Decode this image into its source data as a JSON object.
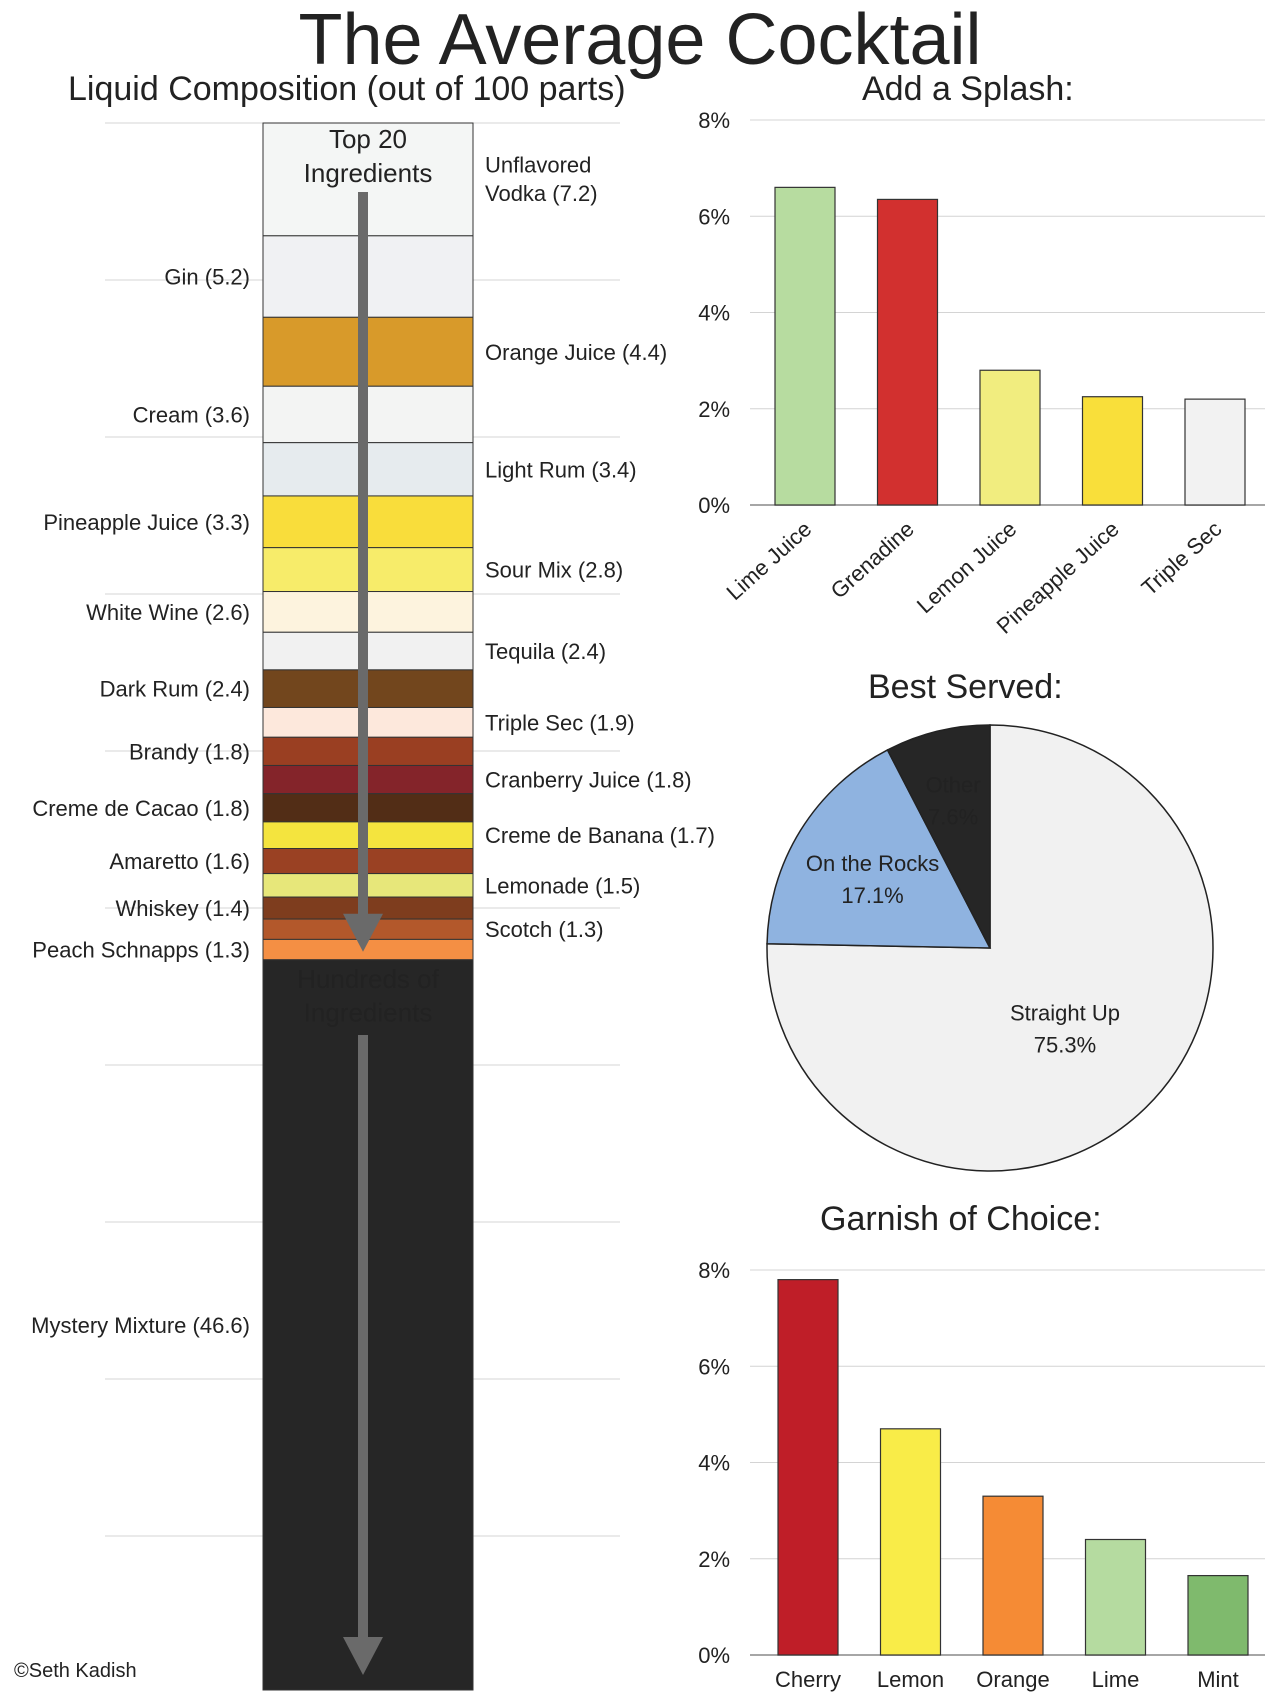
{
  "title": "The Average Cocktail",
  "copyright": "©Seth Kadish",
  "chart_data": [
    {
      "type": "bar",
      "subtype": "stacked-column",
      "title": "Liquid Composition (out of 100 parts)",
      "column_label_top": "Top 20\nIngredients",
      "column_label_bottom": "Hundreds of\nIngredients",
      "segments": [
        {
          "label": "Unflavored\nVodka (7.2)",
          "value": 7.2,
          "color": "#f4f6f5",
          "side": "right"
        },
        {
          "label": "Gin (5.2)",
          "value": 5.2,
          "color": "#f0f1f3",
          "side": "left"
        },
        {
          "label": "Orange Juice (4.4)",
          "value": 4.4,
          "color": "#d89a2a",
          "side": "right"
        },
        {
          "label": "Cream (3.6)",
          "value": 3.6,
          "color": "#f3f4f3",
          "side": "left"
        },
        {
          "label": "Light Rum (3.4)",
          "value": 3.4,
          "color": "#e6ebee",
          "side": "right"
        },
        {
          "label": "Pineapple Juice (3.3)",
          "value": 3.3,
          "color": "#f9dd3b",
          "side": "left"
        },
        {
          "label": "Sour Mix (2.8)",
          "value": 2.8,
          "color": "#f7ec6a",
          "side": "right"
        },
        {
          "label": "White Wine (2.6)",
          "value": 2.6,
          "color": "#fdf3de",
          "side": "left"
        },
        {
          "label": "Tequila (2.4)",
          "value": 2.4,
          "color": "#f1f1f1",
          "side": "right"
        },
        {
          "label": "Dark Rum (2.4)",
          "value": 2.4,
          "color": "#72461d",
          "side": "left"
        },
        {
          "label": "Triple Sec (1.9)",
          "value": 1.9,
          "color": "#fde8dc",
          "side": "right"
        },
        {
          "label": "Brandy (1.8)",
          "value": 1.8,
          "color": "#9a3f22",
          "side": "left"
        },
        {
          "label": "Cranberry Juice (1.8)",
          "value": 1.8,
          "color": "#84242a",
          "side": "right"
        },
        {
          "label": "Creme de Cacao (1.8)",
          "value": 1.8,
          "color": "#522d16",
          "side": "left"
        },
        {
          "label": "Creme de Banana (1.7)",
          "value": 1.7,
          "color": "#f4e43e",
          "side": "right"
        },
        {
          "label": "Amaretto (1.6)",
          "value": 1.6,
          "color": "#9a4123",
          "side": "left"
        },
        {
          "label": "Lemonade (1.5)",
          "value": 1.5,
          "color": "#e7e77a",
          "side": "right"
        },
        {
          "label": "Whiskey (1.4)",
          "value": 1.4,
          "color": "#7e3d1e",
          "side": "left"
        },
        {
          "label": "Scotch (1.3)",
          "value": 1.3,
          "color": "#b3582b",
          "side": "right"
        },
        {
          "label": "Peach Schnapps (1.3)",
          "value": 1.3,
          "color": "#f48f44",
          "side": "left"
        },
        {
          "label": "Mystery Mixture (46.6)",
          "value": 46.6,
          "color": "#262626",
          "side": "left"
        }
      ]
    },
    {
      "type": "bar",
      "title": "Add a Splash:",
      "categories": [
        "Lime Juice",
        "Grenadine",
        "Lemon Juice",
        "Pineapple Juice",
        "Triple Sec"
      ],
      "values": [
        6.6,
        6.35,
        2.8,
        2.25,
        2.2
      ],
      "colors": [
        "#b7dca0",
        "#d2302f",
        "#f1ed7f",
        "#f9df3a",
        "#f2f2f2"
      ],
      "ylim": [
        0,
        8
      ],
      "yticks": [
        "0%",
        "2%",
        "4%",
        "6%",
        "8%"
      ],
      "rotated_labels": true,
      "grid": true
    },
    {
      "type": "pie",
      "title": "Best Served:",
      "slices": [
        {
          "label": "Straight Up",
          "value": 75.3,
          "display": "75.3%",
          "color": "#f1f1f1",
          "text_color": "#222222"
        },
        {
          "label": "On the Rocks",
          "value": 17.1,
          "display": "17.1%",
          "color": "#8fb3e0",
          "text_color": "#222222"
        },
        {
          "label": "Other",
          "value": 7.6,
          "display": "7.6%",
          "color": "#262626",
          "text_color": "#e8e8e8"
        }
      ]
    },
    {
      "type": "bar",
      "title": "Garnish of Choice:",
      "categories": [
        "Cherry",
        "Lemon",
        "Orange",
        "Lime",
        "Mint"
      ],
      "values": [
        7.8,
        4.7,
        3.3,
        2.4,
        1.65
      ],
      "colors": [
        "#bf1e28",
        "#f9ec48",
        "#f58b35",
        "#b5dba0",
        "#7fba6d"
      ],
      "ylim": [
        0,
        8
      ],
      "yticks": [
        "0%",
        "2%",
        "4%",
        "6%",
        "8%"
      ],
      "rotated_labels": false,
      "grid": true
    }
  ]
}
